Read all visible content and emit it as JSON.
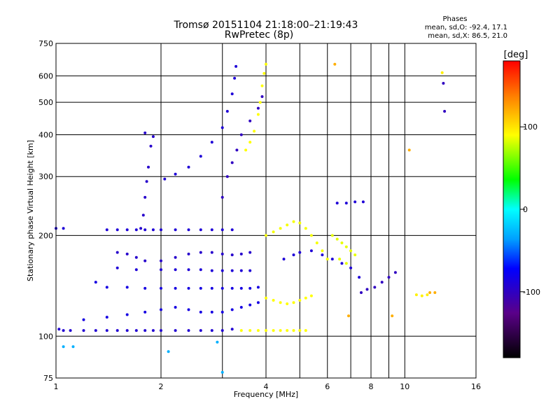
{
  "chart_data": {
    "type": "scatter",
    "title": "Tromsø 20151104 21:18:00–21:19:43",
    "subtitle": "RwPretec (8p)",
    "xlabel": "Frequency [MHz]",
    "ylabel": "Stationary phase Virtual Height [km]",
    "x_scale": "log",
    "y_scale": "log",
    "xlim": [
      1,
      16
    ],
    "ylim": [
      75,
      750
    ],
    "x_ticks": [
      1,
      2,
      4,
      6,
      8,
      10,
      16
    ],
    "x_minor_grid": [
      3,
      5,
      7,
      9
    ],
    "y_ticks": [
      75,
      100,
      200,
      300,
      400,
      500,
      600,
      750
    ],
    "grid": true,
    "phase_box": {
      "title": "Phases",
      "line1": "mean, sd,O: -92.4, 17.1",
      "line2": "mean, sd,X:  86.5, 21.0"
    },
    "colorbar": {
      "label": "[deg]",
      "range": [
        -180,
        180
      ],
      "ticks": [
        100,
        0,
        -100
      ],
      "position": "right"
    },
    "traces": [
      {
        "phase": -92,
        "points": [
          [
            1.02,
            105
          ],
          [
            1.05,
            104
          ],
          [
            1.1,
            104
          ],
          [
            1.2,
            104
          ],
          [
            1.3,
            104
          ],
          [
            1.4,
            104
          ],
          [
            1.5,
            104
          ],
          [
            1.6,
            104
          ],
          [
            1.7,
            104
          ],
          [
            1.8,
            104
          ],
          [
            1.9,
            104
          ],
          [
            2.0,
            104
          ],
          [
            2.2,
            104
          ],
          [
            2.4,
            104
          ],
          [
            2.6,
            104
          ],
          [
            2.8,
            104
          ],
          [
            3.0,
            104
          ],
          [
            3.2,
            105
          ]
        ]
      },
      {
        "phase": -90,
        "points": [
          [
            1.0,
            210
          ],
          [
            1.05,
            210
          ],
          [
            1.4,
            208
          ],
          [
            1.5,
            208
          ],
          [
            1.6,
            208
          ],
          [
            1.7,
            208
          ],
          [
            1.8,
            208
          ],
          [
            1.9,
            208
          ],
          [
            2.0,
            208
          ],
          [
            2.2,
            208
          ],
          [
            2.4,
            208
          ],
          [
            2.6,
            208
          ],
          [
            2.8,
            208
          ],
          [
            3.0,
            208
          ],
          [
            3.2,
            208
          ]
        ]
      },
      {
        "phase": -95,
        "points": [
          [
            1.75,
            210
          ],
          [
            1.78,
            230
          ],
          [
            1.8,
            260
          ],
          [
            1.82,
            290
          ],
          [
            1.84,
            320
          ],
          [
            1.87,
            370
          ],
          [
            1.9,
            395
          ],
          [
            1.8,
            405
          ]
        ]
      },
      {
        "phase": -90,
        "points": [
          [
            2.05,
            295
          ],
          [
            2.2,
            305
          ],
          [
            2.4,
            320
          ],
          [
            2.6,
            345
          ],
          [
            2.8,
            380
          ],
          [
            3.0,
            420
          ],
          [
            3.1,
            470
          ],
          [
            3.2,
            530
          ],
          [
            3.25,
            590
          ],
          [
            3.28,
            640
          ]
        ]
      },
      {
        "phase": -100,
        "points": [
          [
            3.0,
            260
          ],
          [
            3.1,
            300
          ],
          [
            3.2,
            330
          ],
          [
            3.3,
            360
          ],
          [
            3.4,
            400
          ],
          [
            3.6,
            440
          ],
          [
            3.8,
            480
          ],
          [
            3.9,
            520
          ]
        ]
      },
      {
        "phase": 90,
        "points": [
          [
            3.5,
            360
          ],
          [
            3.6,
            380
          ],
          [
            3.7,
            410
          ],
          [
            3.8,
            460
          ],
          [
            3.85,
            500
          ],
          [
            3.9,
            560
          ],
          [
            3.95,
            610
          ],
          [
            4.0,
            650
          ]
        ]
      },
      {
        "phase": -85,
        "points": [
          [
            1.3,
            145
          ],
          [
            1.4,
            140
          ],
          [
            1.6,
            140
          ],
          [
            1.8,
            139
          ],
          [
            2.0,
            139
          ],
          [
            2.2,
            139
          ],
          [
            2.4,
            139
          ],
          [
            2.6,
            139
          ],
          [
            2.8,
            139
          ],
          [
            3.0,
            139
          ],
          [
            3.2,
            139
          ],
          [
            3.4,
            139
          ],
          [
            3.6,
            139
          ],
          [
            3.8,
            140
          ]
        ]
      },
      {
        "phase": -90,
        "points": [
          [
            1.5,
            160
          ],
          [
            1.7,
            158
          ],
          [
            2.0,
            158
          ],
          [
            2.2,
            158
          ],
          [
            2.4,
            158
          ],
          [
            2.6,
            158
          ],
          [
            2.8,
            157
          ],
          [
            3.0,
            157
          ],
          [
            3.2,
            157
          ],
          [
            3.4,
            157
          ],
          [
            3.6,
            157
          ]
        ]
      },
      {
        "phase": -85,
        "points": [
          [
            1.2,
            112
          ],
          [
            1.4,
            114
          ],
          [
            1.6,
            116
          ],
          [
            1.8,
            118
          ],
          [
            2.0,
            120
          ],
          [
            2.2,
            122
          ],
          [
            2.4,
            120
          ],
          [
            2.6,
            118
          ],
          [
            2.8,
            118
          ],
          [
            3.0,
            118
          ],
          [
            3.2,
            120
          ],
          [
            3.4,
            122
          ],
          [
            3.6,
            124
          ],
          [
            3.8,
            126
          ]
        ]
      },
      {
        "phase": -95,
        "points": [
          [
            1.5,
            178
          ],
          [
            1.6,
            176
          ],
          [
            1.7,
            172
          ],
          [
            1.8,
            168
          ],
          [
            2.0,
            168
          ],
          [
            2.2,
            172
          ],
          [
            2.4,
            176
          ],
          [
            2.6,
            178
          ],
          [
            2.8,
            178
          ],
          [
            3.0,
            176
          ],
          [
            3.2,
            175
          ],
          [
            3.4,
            176
          ],
          [
            3.6,
            178
          ]
        ]
      },
      {
        "phase": 90,
        "points": [
          [
            3.4,
            104
          ],
          [
            3.6,
            104
          ],
          [
            3.8,
            104
          ],
          [
            4.0,
            104
          ],
          [
            4.2,
            104
          ],
          [
            4.4,
            104
          ],
          [
            4.6,
            104
          ],
          [
            4.8,
            104
          ],
          [
            5.0,
            104
          ],
          [
            5.2,
            104
          ]
        ]
      },
      {
        "phase": 90,
        "points": [
          [
            4.0,
            130
          ],
          [
            4.2,
            128
          ],
          [
            4.4,
            126
          ],
          [
            4.6,
            125
          ],
          [
            4.8,
            126
          ],
          [
            5.0,
            128
          ],
          [
            5.2,
            130
          ],
          [
            5.4,
            132
          ]
        ]
      },
      {
        "phase": 88,
        "points": [
          [
            4.0,
            200
          ],
          [
            4.2,
            205
          ],
          [
            4.4,
            210
          ],
          [
            4.6,
            215
          ],
          [
            4.8,
            220
          ],
          [
            5.0,
            218
          ],
          [
            5.2,
            210
          ],
          [
            5.4,
            200
          ],
          [
            5.6,
            190
          ],
          [
            5.8,
            180
          ],
          [
            6.0,
            170
          ]
        ]
      },
      {
        "phase": 85,
        "points": [
          [
            6.2,
            200
          ],
          [
            6.4,
            195
          ],
          [
            6.6,
            190
          ],
          [
            6.8,
            185
          ],
          [
            7.0,
            180
          ],
          [
            7.2,
            175
          ],
          [
            6.5,
            170
          ],
          [
            6.8,
            165
          ]
        ]
      },
      {
        "phase": -90,
        "points": [
          [
            4.5,
            170
          ],
          [
            4.8,
            175
          ],
          [
            5.0,
            178
          ],
          [
            5.4,
            180
          ],
          [
            5.8,
            175
          ],
          [
            6.2,
            170
          ],
          [
            6.6,
            165
          ],
          [
            7.0,
            160
          ],
          [
            7.4,
            150
          ]
        ]
      },
      {
        "phase": -100,
        "points": [
          [
            7.5,
            135
          ],
          [
            7.8,
            138
          ],
          [
            8.2,
            140
          ],
          [
            8.6,
            145
          ],
          [
            9.0,
            150
          ],
          [
            9.4,
            155
          ]
        ]
      },
      {
        "phase": -90,
        "points": [
          [
            6.4,
            250
          ],
          [
            6.8,
            250
          ],
          [
            7.2,
            252
          ],
          [
            7.6,
            252
          ]
        ]
      },
      {
        "phase": 120,
        "points": [
          [
            6.3,
            650
          ],
          [
            6.9,
            115
          ],
          [
            9.2,
            115
          ],
          [
            10.3,
            360
          ],
          [
            11.8,
            135
          ],
          [
            12.2,
            135
          ]
        ]
      },
      {
        "phase": 95,
        "points": [
          [
            10.8,
            133
          ],
          [
            11.2,
            132
          ],
          [
            11.6,
            133
          ],
          [
            12.8,
            613
          ]
        ]
      },
      {
        "phase": -100,
        "points": [
          [
            12.9,
            570
          ],
          [
            13.0,
            470
          ]
        ]
      },
      {
        "phase": -30,
        "points": [
          [
            1.05,
            93
          ],
          [
            1.12,
            93
          ],
          [
            2.1,
            90
          ],
          [
            3.0,
            78
          ],
          [
            2.9,
            96
          ]
        ]
      }
    ]
  }
}
